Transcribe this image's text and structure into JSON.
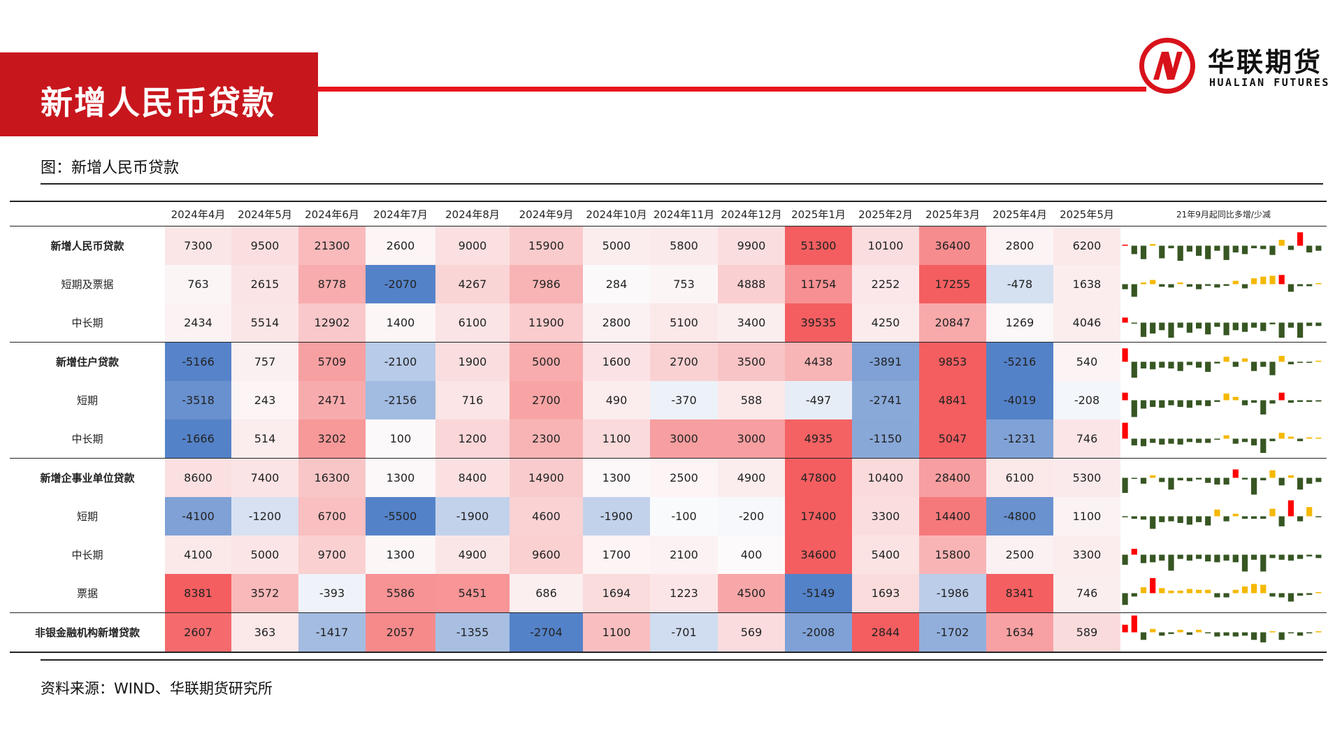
{
  "slide": {
    "title": "新增人民币贷款",
    "figure_caption": "图：新增人民币贷款",
    "source": "资料来源：WIND、华联期货研究所"
  },
  "logo": {
    "cn": "华联期货",
    "en": "HUALIAN FUTURES"
  },
  "colors": {
    "brand_red": "#c8161d",
    "line_red": "#e8121b",
    "spark_pos": "#f5b800",
    "spark_neg": "#375623",
    "spark_first": "#ff0000"
  },
  "table": {
    "label_header": "",
    "spark_header": "21年9月起同比多增/少减",
    "columns": [
      "2024年4月",
      "2024年5月",
      "2024年6月",
      "2024年7月",
      "2024年8月",
      "2024年9月",
      "2024年10月",
      "2024年11月",
      "2024年12月",
      "2025年1月",
      "2025年2月",
      "2025年3月",
      "2025年4月",
      "2025年5月"
    ],
    "rows": [
      {
        "label": "新增人民币贷款",
        "bold": true,
        "group_start": false,
        "values": [
          "7300",
          "9500",
          "21300",
          "2600",
          "9000",
          "15900",
          "5000",
          "5800",
          "9900",
          "51300",
          "10100",
          "36400",
          "2800",
          "6200"
        ],
        "spark": [
          0.05,
          -0.5,
          -0.8,
          0.1,
          -0.75,
          -0.15,
          -0.9,
          -0.35,
          -0.6,
          -0.8,
          -0.3,
          -0.85,
          -0.4,
          -0.5,
          -0.15,
          -0.2,
          -0.55,
          0.35,
          -0.25,
          0.8,
          -0.4,
          -0.3
        ]
      },
      {
        "label": "短期及票据",
        "bold": false,
        "group_start": false,
        "values": [
          "763",
          "2615",
          "8778",
          "-2070",
          "4267",
          "7986",
          "284",
          "753",
          "4888",
          "11754",
          "2252",
          "17255",
          "-478",
          "1638"
        ],
        "spark": [
          -0.3,
          -0.75,
          0.1,
          0.25,
          -0.15,
          -0.2,
          0.1,
          -0.15,
          -0.3,
          -0.1,
          -0.2,
          -0.1,
          0.2,
          -0.25,
          0.35,
          0.45,
          0.5,
          0.55,
          -0.45,
          -0.12,
          -0.12,
          0.0
        ]
      },
      {
        "label": "中长期",
        "bold": false,
        "group_start": false,
        "values": [
          "2434",
          "5514",
          "12902",
          "1400",
          "6100",
          "11900",
          "2800",
          "5100",
          "3400",
          "39535",
          "4250",
          "20847",
          "1269",
          "4046"
        ],
        "spark": [
          0.3,
          -0.05,
          -0.85,
          -0.65,
          -0.45,
          -0.9,
          -0.3,
          -0.6,
          -0.35,
          -0.7,
          -0.25,
          -0.75,
          -0.45,
          -0.55,
          -0.3,
          -0.5,
          -0.1,
          -0.9,
          -0.3,
          -0.9,
          -0.2,
          -0.2
        ]
      },
      {
        "label": "新增住户贷款",
        "bold": true,
        "group_start": true,
        "values": [
          "-5166",
          "757",
          "5709",
          "-2100",
          "1900",
          "5000",
          "1600",
          "2700",
          "3500",
          "4438",
          "-3891",
          "9853",
          "-5216",
          "540"
        ],
        "spark": [
          0.8,
          -0.95,
          -0.4,
          -0.45,
          -0.35,
          -0.4,
          -0.55,
          -0.2,
          -0.35,
          -0.6,
          -0.1,
          0.3,
          -0.3,
          0.2,
          -0.55,
          -0.3,
          -0.8,
          0.35,
          -0.15,
          -0.05,
          -0.05,
          0.0
        ]
      },
      {
        "label": "短期",
        "bold": false,
        "group_start": false,
        "values": [
          "-3518",
          "243",
          "2471",
          "-2156",
          "716",
          "2700",
          "490",
          "-370",
          "588",
          "-497",
          "-2741",
          "4841",
          "-4019",
          "-208"
        ],
        "spark": [
          0.45,
          -1.0,
          -0.5,
          -0.4,
          -0.45,
          -0.3,
          -0.4,
          -0.45,
          -0.3,
          -0.35,
          -0.1,
          0.4,
          0.2,
          -0.3,
          -0.15,
          -0.85,
          -0.2,
          0.45,
          -0.15,
          -0.1,
          -0.1,
          -0.08
        ]
      },
      {
        "label": "中长期",
        "bold": false,
        "group_start": false,
        "values": [
          "-1666",
          "514",
          "3202",
          "100",
          "1200",
          "2300",
          "1100",
          "3000",
          "3000",
          "4935",
          "-1150",
          "5047",
          "-1231",
          "746"
        ],
        "spark": [
          0.95,
          -0.4,
          -0.45,
          -0.25,
          -0.35,
          -0.3,
          -0.35,
          -0.2,
          -0.25,
          -0.25,
          -0.05,
          0.2,
          -0.3,
          -0.2,
          -0.4,
          -0.85,
          -0.15,
          0.35,
          0.12,
          -0.15,
          0.08,
          0.0
        ]
      },
      {
        "label": "新增企事业单位贷款",
        "bold": true,
        "group_start": true,
        "values": [
          "8600",
          "7400",
          "16300",
          "1300",
          "8400",
          "14900",
          "1300",
          "2500",
          "4900",
          "47800",
          "10400",
          "28400",
          "6100",
          "5300"
        ],
        "spark": [
          -0.9,
          -0.05,
          -0.35,
          0.15,
          -0.25,
          -0.7,
          -0.15,
          -0.2,
          -0.1,
          -0.3,
          -0.4,
          -0.4,
          0.5,
          -0.1,
          -1.0,
          -0.15,
          0.45,
          -0.45,
          0.15,
          -0.7,
          -0.35,
          -0.25
        ]
      },
      {
        "label": "短期",
        "bold": false,
        "group_start": false,
        "values": [
          "-4100",
          "-1200",
          "6700",
          "-5500",
          "-1900",
          "4600",
          "-1900",
          "-100",
          "-200",
          "17400",
          "3300",
          "14400",
          "-4800",
          "1100"
        ],
        "spark": [
          -0.05,
          -0.15,
          -0.2,
          -0.75,
          -0.35,
          -0.3,
          -0.4,
          -0.5,
          -0.35,
          -0.55,
          0.4,
          -0.3,
          0.15,
          -0.15,
          -0.15,
          -0.15,
          0.45,
          -0.6,
          0.95,
          -0.3,
          0.55,
          -0.05
        ]
      },
      {
        "label": "中长期",
        "bold": false,
        "group_start": false,
        "values": [
          "4100",
          "5000",
          "9700",
          "1300",
          "4900",
          "9600",
          "1700",
          "2100",
          "400",
          "34600",
          "5400",
          "15800",
          "2500",
          "3300"
        ],
        "spark": [
          -0.6,
          0.35,
          -0.5,
          -0.45,
          -0.35,
          -0.95,
          -0.25,
          -0.35,
          -0.25,
          -0.4,
          -0.45,
          -0.35,
          -0.45,
          -1.0,
          -0.3,
          -1.0,
          -0.2,
          -0.3,
          -0.35,
          -0.25,
          -0.1,
          -0.2
        ]
      },
      {
        "label": "票据",
        "bold": false,
        "group_start": false,
        "values": [
          "8381",
          "3572",
          "-393",
          "5586",
          "5451",
          "686",
          "1694",
          "1223",
          "4500",
          "-5149",
          "1693",
          "-1986",
          "8341",
          "746"
        ],
        "spark": [
          -0.7,
          -0.2,
          0.35,
          0.9,
          0.3,
          0.15,
          0.15,
          0.25,
          0.2,
          0.2,
          -0.25,
          -0.25,
          0.2,
          0.4,
          0.55,
          0.5,
          -0.2,
          -0.25,
          -0.5,
          -0.15,
          -0.1,
          0.0
        ]
      },
      {
        "label": "非银金融机构新增贷款",
        "bold": true,
        "group_start": true,
        "values": [
          "2607",
          "363",
          "-1417",
          "2057",
          "-1355",
          "-2704",
          "1100",
          "-701",
          "569",
          "-2008",
          "2844",
          "-1702",
          "1634",
          "589"
        ],
        "spark": [
          0.45,
          1.0,
          -0.45,
          0.2,
          -0.2,
          -0.1,
          0.15,
          -0.15,
          0.15,
          -0.05,
          -0.25,
          -0.2,
          -0.25,
          -0.2,
          -0.45,
          -0.6,
          0.05,
          -0.45,
          -0.05,
          -0.2,
          -0.05,
          0.0
        ]
      }
    ]
  }
}
